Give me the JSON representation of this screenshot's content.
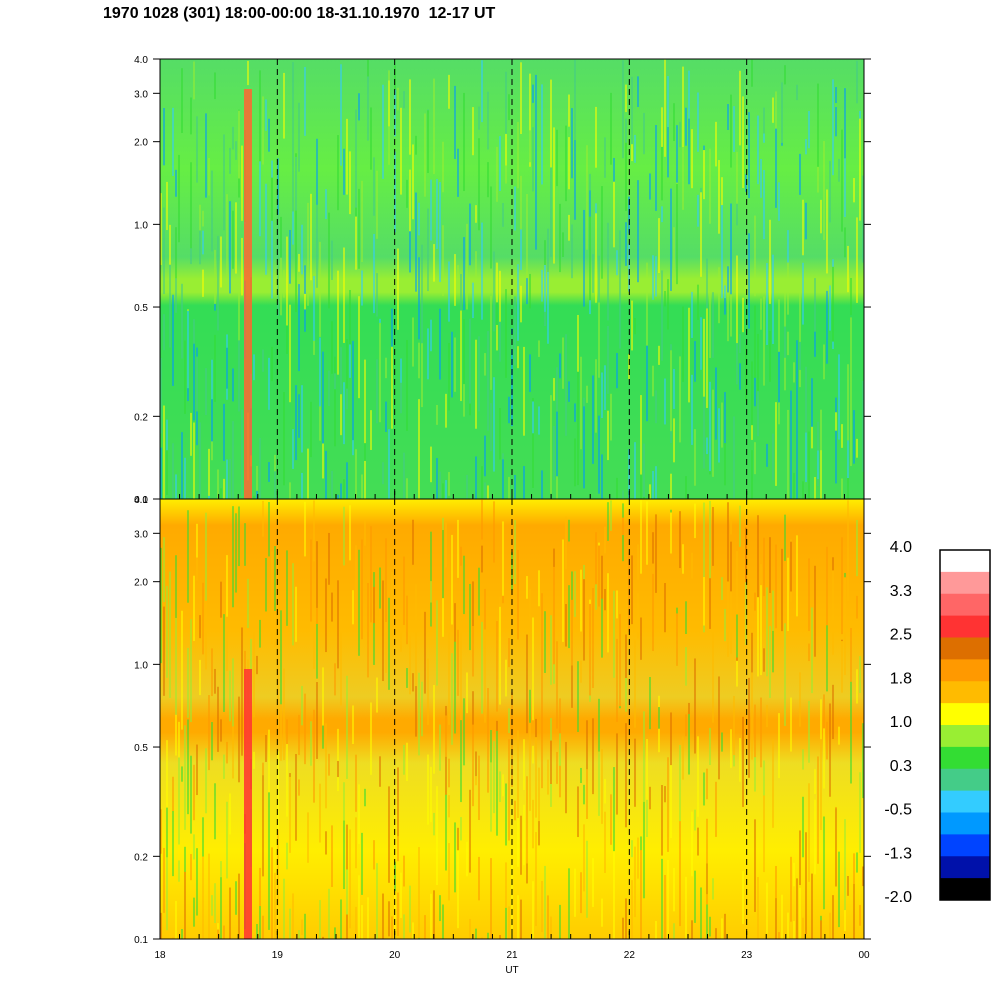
{
  "title": "1970 1028 (301) 18:00-00:00 18-31.10.1970  12-17 UT",
  "chart_data": {
    "type": "heatmap",
    "panels": [
      {
        "id": "upper",
        "y_ticks": [
          "4.0",
          "3.0",
          "2.0",
          "1.0",
          "0.5",
          "0.2",
          "0.1"
        ],
        "y_values": [
          4.0,
          3.0,
          2.0,
          1.0,
          0.5,
          0.2,
          0.1
        ],
        "ylim": [
          0.1,
          4.0
        ],
        "y_scale": "log"
      },
      {
        "id": "lower",
        "y_ticks": [
          "4.0",
          "3.0",
          "2.0",
          "1.0",
          "0.5",
          "0.2",
          "0.1"
        ],
        "y_values": [
          4.0,
          3.0,
          2.0,
          1.0,
          0.5,
          0.2,
          0.1
        ],
        "ylim": [
          0.1,
          4.0
        ],
        "y_scale": "log"
      }
    ],
    "x_ticks": [
      "18",
      "19",
      "20",
      "21",
      "22",
      "23",
      "00"
    ],
    "x_values": [
      18,
      19,
      20,
      21,
      22,
      23,
      24
    ],
    "xlim": [
      18,
      24
    ],
    "xlabel": "UT",
    "dashed_vertical_lines_at": [
      19,
      20,
      21,
      22,
      23
    ],
    "colorbar": {
      "labels": [
        "4.0",
        "3.3",
        "2.5",
        "1.8",
        "1.0",
        "0.3",
        "-0.5",
        "-1.3",
        "-2.0"
      ],
      "colors": [
        "#ffffff",
        "#ff9999",
        "#ff6666",
        "#ff3333",
        "#dd6f00",
        "#ff9900",
        "#ffbb00",
        "#ffff00",
        "#99ee33",
        "#33dd33",
        "#44cc88",
        "#33ccff",
        "#0099ff",
        "#0044ff",
        "#0011aa",
        "#000000"
      ]
    }
  }
}
